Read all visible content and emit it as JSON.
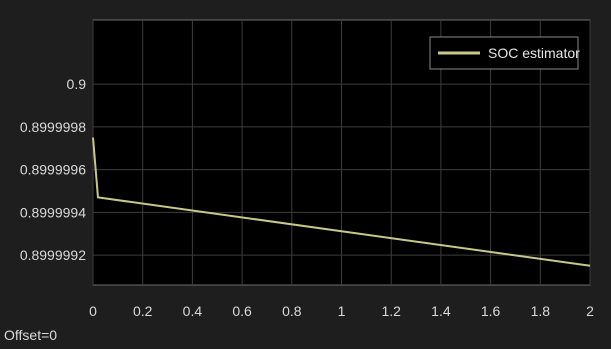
{
  "chart_data": {
    "type": "line",
    "title": "",
    "xlabel": "",
    "ylabel": "",
    "xlim": [
      0,
      2
    ],
    "ylim": [
      0.89999906,
      0.9000003
    ],
    "x_ticks": [
      0,
      0.2,
      0.4,
      0.6,
      0.8,
      1,
      1.2,
      1.4,
      1.6,
      1.8,
      2
    ],
    "x_tick_labels": [
      "0",
      "0.2",
      "0.4",
      "0.6",
      "0.8",
      "1",
      "1.2",
      "1.4",
      "1.6",
      "1.8",
      "2"
    ],
    "y_ticks": [
      0.8999992,
      0.8999994,
      0.8999996,
      0.8999998,
      0.9
    ],
    "y_tick_labels": [
      "0.8999992",
      "0.8999994",
      "0.8999996",
      "0.8999998",
      "0.9"
    ],
    "grid": true,
    "legend_position": "top-right",
    "series": [
      {
        "name": "SOC estimator",
        "color": "#c8c88a",
        "x": [
          0,
          0.02,
          2
        ],
        "y": [
          0.89999975,
          0.89999947,
          0.89999915
        ]
      }
    ],
    "footer_text": "Offset=0",
    "colors": {
      "background": "#1e1e1e",
      "plot_area": "#000000",
      "grid": "#3c3c3c",
      "text": "#d9d9d9"
    }
  }
}
